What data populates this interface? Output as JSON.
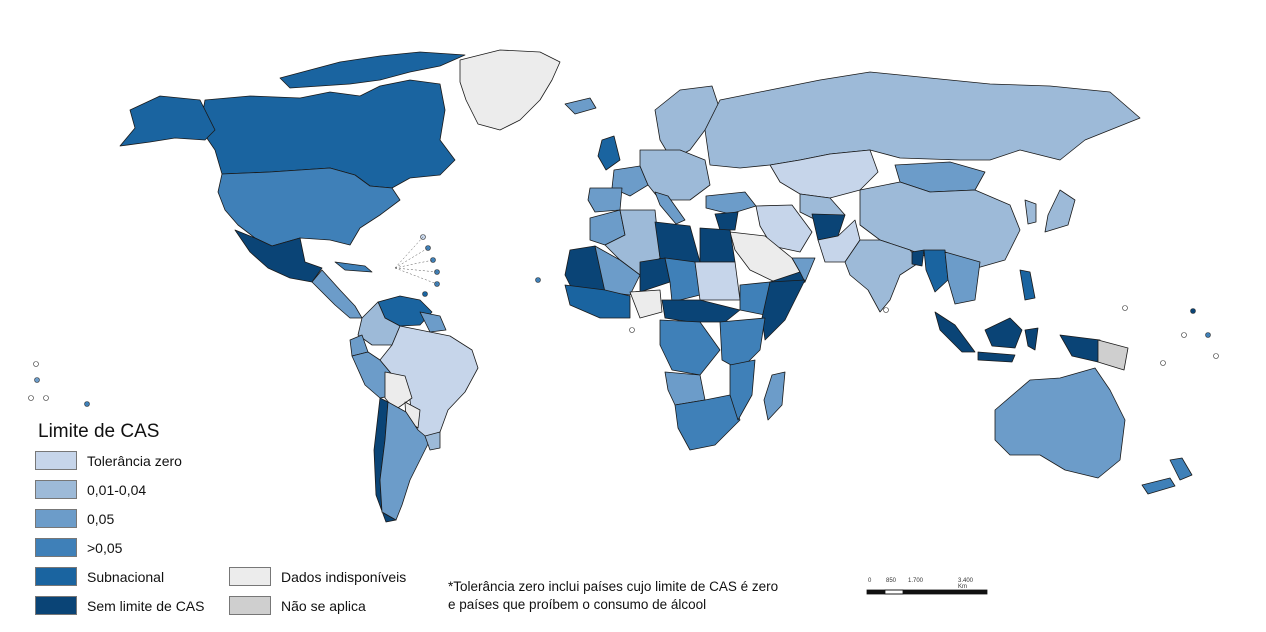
{
  "legend": {
    "title": "Limite de CAS",
    "items": [
      {
        "label": "Tolerância zero",
        "color": "#c6d5ea"
      },
      {
        "label": "0,01-0,04",
        "color": "#9dbad8"
      },
      {
        "label": "0,05",
        "color": "#6c9cc9"
      },
      {
        "label": ">0,05",
        "color": "#3f80b8"
      },
      {
        "label": "Subnacional",
        "color": "#1a64a0"
      },
      {
        "label": "Sem limite de CAS",
        "color": "#0a4476"
      },
      {
        "label": "Dados indisponíveis",
        "color": "#ececec"
      },
      {
        "label": "Não se aplica",
        "color": "#cfcfcf"
      }
    ]
  },
  "note": {
    "line1": "*Tolerância zero inclui países cujo limite de CAS é zero",
    "line2": "e países que proíbem o consumo de álcool"
  },
  "scale": {
    "labels": [
      "0",
      "850",
      "1.700",
      "3.400 Km"
    ]
  }
}
